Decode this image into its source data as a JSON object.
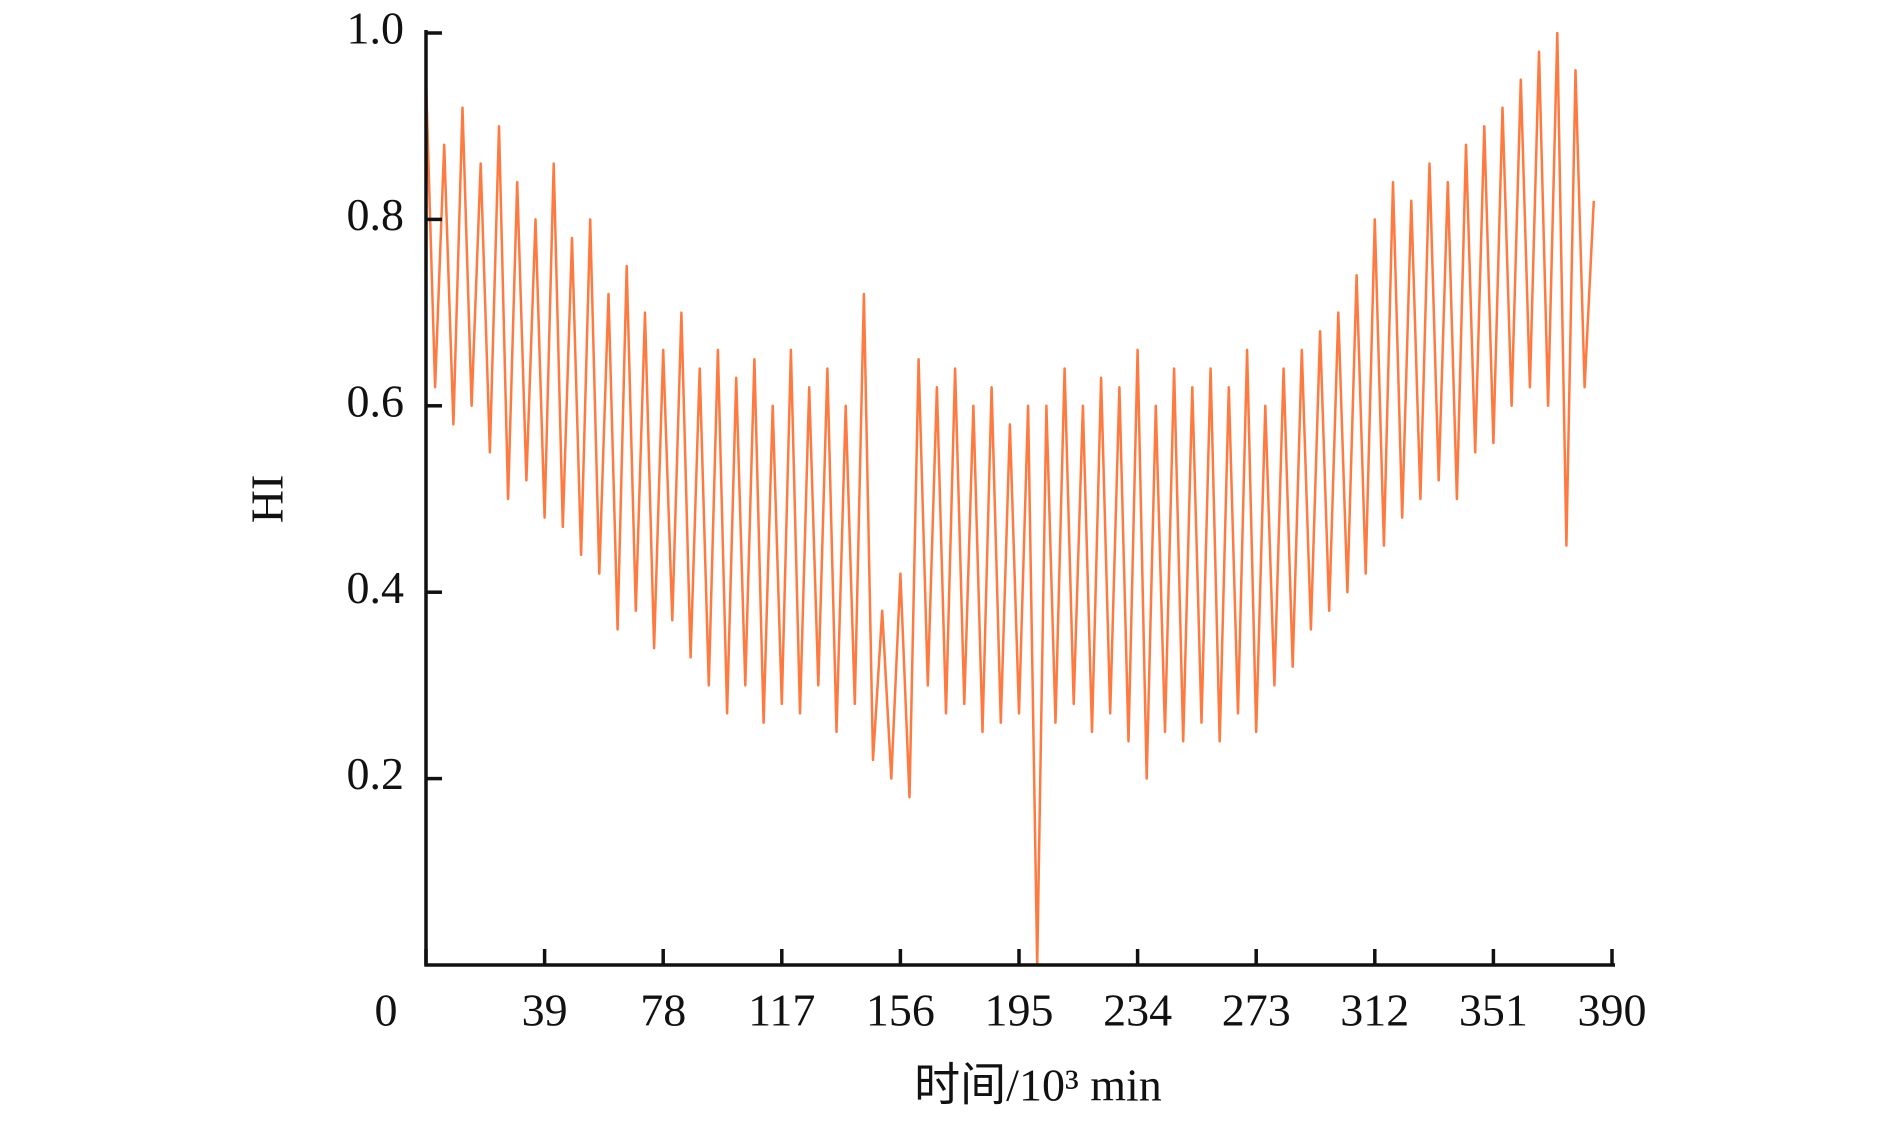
{
  "chart_data": {
    "type": "line",
    "xlabel": "时间/10³ min",
    "ylabel": "HI",
    "xlim": [
      0,
      390
    ],
    "xticks": [
      0,
      39,
      78,
      117,
      156,
      195,
      234,
      273,
      312,
      351,
      390
    ],
    "ylim": [
      0,
      1
    ],
    "yticks": [
      0.2,
      0.4,
      0.6,
      0.8,
      {
        "value": 1,
        "label": "1.0"
      }
    ],
    "series": [
      {
        "name": "HI",
        "color": "#ff7a40",
        "x": [
          0,
          3,
          6,
          9,
          12,
          15,
          18,
          21,
          24,
          27,
          30,
          33,
          36,
          39,
          42,
          45,
          48,
          51,
          54,
          57,
          60,
          63,
          66,
          69,
          72,
          75,
          78,
          81,
          84,
          87,
          90,
          93,
          96,
          99,
          102,
          105,
          108,
          111,
          114,
          117,
          120,
          123,
          126,
          129,
          132,
          135,
          138,
          141,
          144,
          147,
          150,
          153,
          156,
          159,
          162,
          165,
          168,
          171,
          174,
          177,
          180,
          183,
          186,
          189,
          192,
          195,
          198,
          201,
          204,
          207,
          210,
          213,
          216,
          219,
          222,
          225,
          228,
          231,
          234,
          237,
          240,
          243,
          246,
          249,
          252,
          255,
          258,
          261,
          264,
          267,
          270,
          273,
          276,
          279,
          282,
          285,
          288,
          291,
          294,
          297,
          300,
          303,
          306,
          309,
          312,
          315,
          318,
          321,
          324,
          327,
          330,
          333,
          336,
          339,
          342,
          345,
          348,
          351,
          354,
          357,
          360,
          363,
          366,
          369,
          372,
          375,
          378,
          381,
          384
        ],
        "values": [
          0.95,
          0.62,
          0.88,
          0.58,
          0.92,
          0.6,
          0.86,
          0.55,
          0.9,
          0.5,
          0.84,
          0.52,
          0.8,
          0.48,
          0.86,
          0.47,
          0.78,
          0.44,
          0.8,
          0.42,
          0.72,
          0.36,
          0.75,
          0.38,
          0.7,
          0.34,
          0.66,
          0.37,
          0.7,
          0.33,
          0.64,
          0.3,
          0.66,
          0.27,
          0.63,
          0.3,
          0.65,
          0.26,
          0.6,
          0.28,
          0.66,
          0.27,
          0.62,
          0.3,
          0.64,
          0.25,
          0.6,
          0.28,
          0.72,
          0.22,
          0.38,
          0.2,
          0.42,
          0.18,
          0.65,
          0.3,
          0.62,
          0.27,
          0.64,
          0.28,
          0.6,
          0.25,
          0.62,
          0.26,
          0.58,
          0.27,
          0.6,
          0.0,
          0.6,
          0.26,
          0.64,
          0.28,
          0.6,
          0.25,
          0.63,
          0.27,
          0.62,
          0.24,
          0.66,
          0.2,
          0.6,
          0.25,
          0.64,
          0.24,
          0.62,
          0.26,
          0.64,
          0.24,
          0.62,
          0.27,
          0.66,
          0.25,
          0.6,
          0.3,
          0.64,
          0.32,
          0.66,
          0.36,
          0.68,
          0.38,
          0.7,
          0.4,
          0.74,
          0.42,
          0.8,
          0.45,
          0.84,
          0.48,
          0.82,
          0.5,
          0.86,
          0.52,
          0.84,
          0.5,
          0.88,
          0.55,
          0.9,
          0.56,
          0.92,
          0.6,
          0.95,
          0.62,
          0.98,
          0.6,
          1.0,
          0.45,
          0.96,
          0.62,
          0.82
        ]
      }
    ]
  }
}
